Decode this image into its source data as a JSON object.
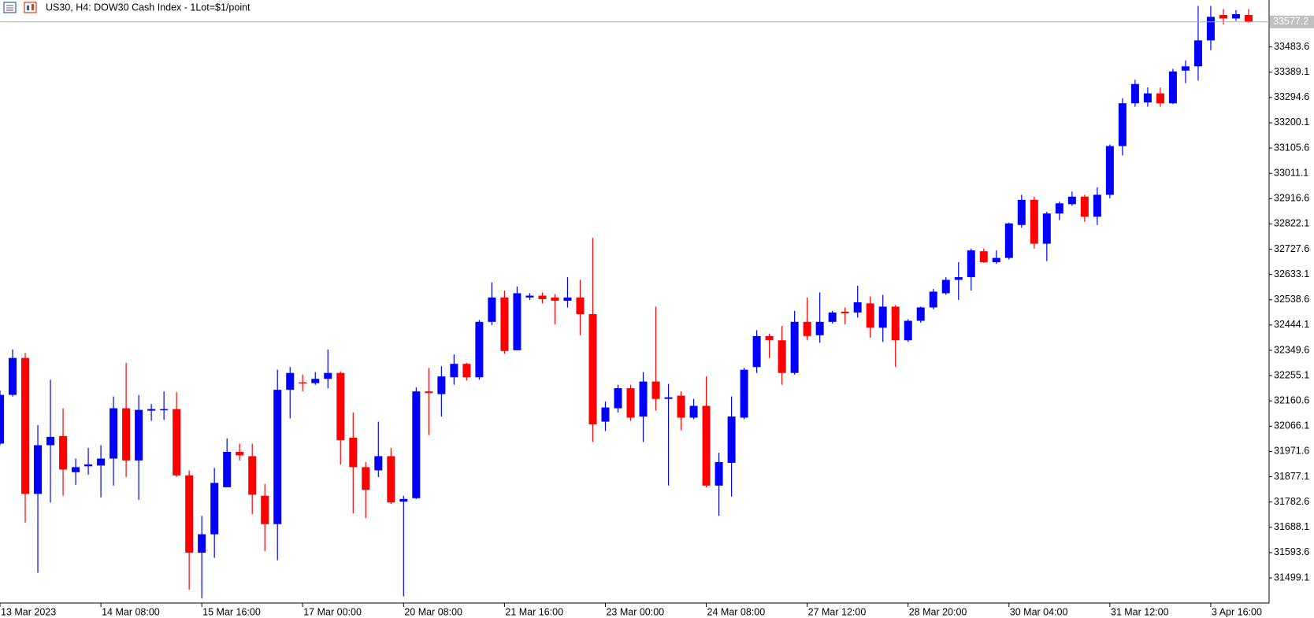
{
  "chart_data": {
    "type": "candlestick",
    "title": "US30, H4:  DOW30 Cash Index - 1Lot=$1/point",
    "up_color": "#0000ff",
    "down_color": "#ff0000",
    "ylim": [
      31405,
      33659
    ],
    "yticks": [
      33483.6,
      33389.1,
      33294.6,
      33200.1,
      33105.6,
      33011.1,
      32916.6,
      32822.1,
      32727.6,
      32633.1,
      32538.6,
      32444.1,
      32349.6,
      32255.1,
      32160.6,
      32066.1,
      31971.6,
      31877.1,
      31782.6,
      31688.1,
      31593.6,
      31499.1
    ],
    "current_price": 33577.2,
    "categories": [
      "13 Mar 2023",
      null,
      null,
      null,
      null,
      null,
      null,
      null,
      "14 Mar 08:00",
      null,
      null,
      null,
      null,
      null,
      null,
      null,
      "15 Mar 16:00",
      null,
      null,
      null,
      null,
      null,
      null,
      null,
      "17 Mar 00:00",
      null,
      null,
      null,
      null,
      null,
      null,
      null,
      "20 Mar 08:00",
      null,
      null,
      null,
      null,
      null,
      null,
      null,
      "21 Mar 16:00",
      null,
      null,
      null,
      null,
      null,
      null,
      null,
      "23 Mar 00:00",
      null,
      null,
      null,
      null,
      null,
      null,
      null,
      "24 Mar 08:00",
      null,
      null,
      null,
      null,
      null,
      null,
      null,
      "27 Mar 12:00",
      null,
      null,
      null,
      null,
      null,
      null,
      null,
      "28 Mar 20:00",
      null,
      null,
      null,
      null,
      null,
      null,
      null,
      "30 Mar 04:00",
      null,
      null,
      null,
      null,
      null,
      null,
      null,
      "31 Mar 12:00",
      null,
      null,
      null,
      null,
      null,
      null,
      null,
      "3 Apr 16:00",
      null,
      null,
      null
    ],
    "open": [
      32001,
      32183,
      32321,
      31813,
      31995,
      32029,
      31894,
      31916,
      31919,
      31945,
      32133,
      31938,
      32124,
      32127,
      32130,
      31882,
      31593,
      31662,
      31838,
      31970,
      31954,
      31806,
      31700,
      32202,
      32230,
      32227,
      32243,
      32265,
      32023,
      31913,
      31901,
      31954,
      31784,
      31797,
      32196,
      32186,
      32249,
      32299,
      32249,
      32456,
      32547,
      32350,
      32547,
      32554,
      32547,
      32535,
      32547,
      32485,
      32083,
      32133,
      32208,
      32102,
      32233,
      32168,
      32180,
      32098,
      32142,
      31844,
      31929,
      32098,
      32287,
      32403,
      32387,
      32265,
      32456,
      32406,
      32456,
      32494,
      32491,
      32525,
      32434,
      32513,
      32387,
      32460,
      32510,
      32563,
      32613,
      32623,
      32720,
      32679,
      32695,
      32818,
      32912,
      32748,
      32861,
      32896,
      32924,
      32849,
      32931,
      33113,
      33273,
      33276,
      33310,
      33273,
      33395,
      33411,
      33508,
      33603,
      33590,
      33603
    ],
    "high": [
      32199,
      32353,
      32340,
      32070,
      32240,
      32133,
      31945,
      31985,
      31995,
      32177,
      32303,
      32183,
      32149,
      32196,
      32193,
      31901,
      31731,
      31910,
      32020,
      32001,
      32001,
      31850,
      32277,
      32287,
      32259,
      32268,
      32353,
      32271,
      32117,
      31932,
      32083,
      31985,
      31806,
      32211,
      32284,
      32290,
      32334,
      32303,
      32463,
      32604,
      32573,
      32588,
      32563,
      32566,
      32560,
      32623,
      32613,
      32770,
      32158,
      32221,
      32221,
      32268,
      32513,
      32224,
      32196,
      32168,
      32252,
      31967,
      32177,
      32284,
      32425,
      32412,
      32441,
      32497,
      32547,
      32566,
      32497,
      32510,
      32591,
      32551,
      32557,
      32519,
      32466,
      32513,
      32579,
      32623,
      32679,
      32730,
      32730,
      32723,
      32827,
      32931,
      32924,
      32868,
      32906,
      32943,
      32931,
      32959,
      33119,
      33292,
      33361,
      33332,
      33332,
      33402,
      33433,
      33637,
      33637,
      33625,
      33621,
      33625
    ],
    "low": [
      31995,
      32177,
      31706,
      31518,
      31781,
      31806,
      31847,
      31885,
      31800,
      31844,
      31876,
      31791,
      32086,
      32089,
      31876,
      31455,
      31423,
      31574,
      31838,
      31938,
      31737,
      31599,
      31565,
      32095,
      32196,
      32221,
      32208,
      31923,
      31740,
      31722,
      31876,
      31775,
      31430,
      31794,
      32033,
      32102,
      32221,
      32237,
      32240,
      32444,
      32337,
      32350,
      32538,
      32525,
      32447,
      32510,
      32406,
      32007,
      32048,
      32117,
      32086,
      32007,
      32124,
      31844,
      32051,
      32092,
      31838,
      31731,
      31803,
      32092,
      32265,
      32321,
      32221,
      32259,
      32387,
      32378,
      32450,
      32447,
      32472,
      32397,
      32381,
      32287,
      32381,
      32453,
      32503,
      32557,
      32538,
      32573,
      32676,
      32673,
      32689,
      32808,
      32730,
      32683,
      32836,
      32890,
      32830,
      32818,
      32918,
      33078,
      33260,
      33260,
      33260,
      33270,
      33348,
      33358,
      33471,
      33568,
      33581,
      33574
    ],
    "close": [
      32183,
      32321,
      31813,
      31995,
      32026,
      31904,
      31913,
      31923,
      31945,
      32133,
      31938,
      32127,
      32130,
      32130,
      31882,
      31593,
      31662,
      31854,
      31970,
      31957,
      31810,
      31700,
      32202,
      32265,
      32227,
      32243,
      32265,
      32014,
      31913,
      31828,
      31954,
      31781,
      31794,
      32196,
      32190,
      32252,
      32299,
      32249,
      32456,
      32547,
      32347,
      32563,
      32554,
      32541,
      32535,
      32547,
      32485,
      32073,
      32136,
      32208,
      32098,
      32233,
      32168,
      32174,
      32098,
      32142,
      31844,
      31932,
      32102,
      32277,
      32403,
      32387,
      32265,
      32456,
      32403,
      32456,
      32491,
      32488,
      32529,
      32434,
      32513,
      32387,
      32460,
      32510,
      32569,
      32613,
      32623,
      32723,
      32679,
      32695,
      32824,
      32912,
      32748,
      32861,
      32899,
      32924,
      32849,
      32931,
      33113,
      33273,
      33345,
      33310,
      33273,
      33392,
      33411,
      33508,
      33596,
      33590,
      33606,
      33577
    ]
  }
}
